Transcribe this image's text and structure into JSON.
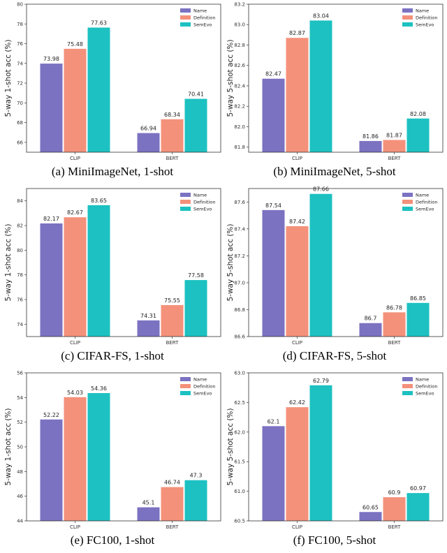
{
  "legend_labels": [
    "Name",
    "Definition",
    "SemEvo"
  ],
  "colors": {
    "Name": "#7b72c2",
    "Definition": "#f4917b",
    "SemEvo": "#1dc1c1"
  },
  "chart_data": [
    {
      "type": "bar",
      "caption": "(a) MiniImageNet, 1-shot",
      "ylabel": "5-way 1-shot acc (%)",
      "categories": [
        "CLIP",
        "BERT"
      ],
      "ylim": [
        65,
        80
      ],
      "yticks": [
        66,
        68,
        70,
        72,
        74,
        76,
        78,
        80
      ],
      "legend": "top-right",
      "series": [
        {
          "name": "Name",
          "values": [
            73.98,
            66.94
          ],
          "labels": [
            "73.98",
            "66.94"
          ]
        },
        {
          "name": "Definition",
          "values": [
            75.48,
            68.34
          ],
          "labels": [
            "75.48",
            "68.34"
          ]
        },
        {
          "name": "SemEvo",
          "values": [
            77.63,
            70.41
          ],
          "labels": [
            "77.63",
            "70.41"
          ]
        }
      ]
    },
    {
      "type": "bar",
      "caption": "(b) MiniImageNet, 5-shot",
      "ylabel": "5-way 5-shot acc (%)",
      "categories": [
        "CLIP",
        "BERT"
      ],
      "ylim": [
        81.75,
        83.2
      ],
      "yticks": [
        81.8,
        82.0,
        82.2,
        82.4,
        82.6,
        82.8,
        83.0,
        83.2
      ],
      "tick_decimals": 1,
      "legend": "top-right",
      "series": [
        {
          "name": "Name",
          "values": [
            82.47,
            81.86
          ],
          "labels": [
            "82.47",
            "81.86"
          ]
        },
        {
          "name": "Definition",
          "values": [
            82.87,
            81.87
          ],
          "labels": [
            "82.87",
            "81.87"
          ]
        },
        {
          "name": "SemEvo",
          "values": [
            83.04,
            82.08
          ],
          "labels": [
            "83.04",
            "82.08"
          ]
        }
      ]
    },
    {
      "type": "bar",
      "caption": "(c) CIFAR-FS, 1-shot",
      "ylabel": "5-way 1-shot acc (%)",
      "categories": [
        "CLIP",
        "BERT"
      ],
      "ylim": [
        73,
        85
      ],
      "yticks": [
        74,
        76,
        78,
        80,
        82,
        84
      ],
      "legend": "top-right",
      "series": [
        {
          "name": "Name",
          "values": [
            82.17,
            74.31
          ],
          "labels": [
            "82.17",
            "74.31"
          ]
        },
        {
          "name": "Definition",
          "values": [
            82.67,
            75.55
          ],
          "labels": [
            "82.67",
            "75.55"
          ]
        },
        {
          "name": "SemEvo",
          "values": [
            83.65,
            77.58
          ],
          "labels": [
            "83.65",
            "77.58"
          ]
        }
      ]
    },
    {
      "type": "bar",
      "caption": "(d) CIFAR-FS, 5-shot",
      "ylabel": "5-way 5-shot acc (%)",
      "categories": [
        "CLIP",
        "BERT"
      ],
      "ylim": [
        86.6,
        87.7
      ],
      "yticks": [
        86.6,
        86.8,
        87.0,
        87.2,
        87.4,
        87.6
      ],
      "tick_decimals": 1,
      "legend": "top-right",
      "series": [
        {
          "name": "Name",
          "values": [
            87.54,
            86.7
          ],
          "labels": [
            "87.54",
            "86.7"
          ]
        },
        {
          "name": "Definition",
          "values": [
            87.42,
            86.78
          ],
          "labels": [
            "87.42",
            "86.78"
          ]
        },
        {
          "name": "SemEvo",
          "values": [
            87.66,
            86.85
          ],
          "labels": [
            "87.66",
            "86.85"
          ]
        }
      ]
    },
    {
      "type": "bar",
      "caption": "(e) FC100, 1-shot",
      "ylabel": "5-way 1-shot acc (%)",
      "categories": [
        "CLIP",
        "BERT"
      ],
      "ylim": [
        44,
        56
      ],
      "yticks": [
        44,
        46,
        48,
        50,
        52,
        54,
        56
      ],
      "legend": "top-right",
      "series": [
        {
          "name": "Name",
          "values": [
            52.22,
            45.1
          ],
          "labels": [
            "52.22",
            "45.1"
          ]
        },
        {
          "name": "Definition",
          "values": [
            54.03,
            46.74
          ],
          "labels": [
            "54.03",
            "46.74"
          ]
        },
        {
          "name": "SemEvo",
          "values": [
            54.36,
            47.3
          ],
          "labels": [
            "54.36",
            "47.3"
          ]
        }
      ]
    },
    {
      "type": "bar",
      "caption": "(f) FC100, 5-shot",
      "ylabel": "5-way 5-shot acc (%)",
      "categories": [
        "CLIP",
        "BERT"
      ],
      "ylim": [
        60.5,
        63.0
      ],
      "yticks": [
        60.5,
        61.0,
        61.5,
        62.0,
        62.5,
        63.0
      ],
      "tick_decimals": 1,
      "legend": "top-right",
      "series": [
        {
          "name": "Name",
          "values": [
            62.1,
            60.65
          ],
          "labels": [
            "62.1",
            "60.65"
          ]
        },
        {
          "name": "Definition",
          "values": [
            62.42,
            60.9
          ],
          "labels": [
            "62.42",
            "60.9"
          ]
        },
        {
          "name": "SemEvo",
          "values": [
            62.79,
            60.97
          ],
          "labels": [
            "62.79",
            "60.97"
          ]
        }
      ]
    }
  ]
}
